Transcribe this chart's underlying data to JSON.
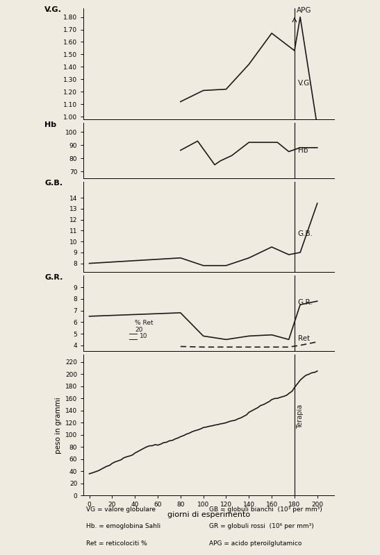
{
  "bg_color": "#f0ebe0",
  "therapy_x": 180,
  "x_lim": [
    -5,
    215
  ],
  "x_ticks": [
    0,
    20,
    40,
    60,
    80,
    100,
    120,
    140,
    160,
    180,
    200
  ],
  "xlabel": "giorni di esperimento",
  "legend_lines": [
    "VG = valore globulare",
    "Hb. = emoglobina Sahli",
    "Ret = reticolociti %"
  ],
  "legend_lines_right": [
    "GB = globuli bianchi  (10³ per mm³)",
    "GR = globuli rossi  (10⁶ per mm³)",
    "APG = acido pteroilglutamico"
  ],
  "vg": {
    "ylabel": "V.G.",
    "ylim": [
      0.98,
      1.87
    ],
    "yticks": [
      1.0,
      1.1,
      1.2,
      1.3,
      1.4,
      1.5,
      1.6,
      1.7,
      1.8
    ],
    "x": [
      80,
      100,
      120,
      140,
      160,
      180,
      185,
      200
    ],
    "y": [
      1.12,
      1.21,
      1.22,
      1.42,
      1.67,
      1.53,
      1.8,
      0.92
    ]
  },
  "hb": {
    "ylabel": "Hb",
    "ylim": [
      65,
      107
    ],
    "yticks": [
      70,
      80,
      90,
      100
    ],
    "x": [
      80,
      95,
      110,
      115,
      125,
      140,
      155,
      165,
      175,
      185,
      200
    ],
    "y": [
      86,
      93,
      75,
      78,
      82,
      92,
      92,
      92,
      85,
      88,
      88
    ]
  },
  "gb": {
    "ylabel": "G.B.",
    "ylim": [
      7.2,
      15.5
    ],
    "yticks": [
      8,
      9,
      10,
      11,
      12,
      13,
      14
    ],
    "x": [
      0,
      80,
      100,
      120,
      140,
      160,
      175,
      185,
      200
    ],
    "y": [
      8.0,
      8.5,
      7.8,
      7.8,
      8.5,
      9.5,
      8.8,
      9.0,
      13.5
    ]
  },
  "gr": {
    "ylabel": "G.R.",
    "ylim": [
      3.5,
      10.0
    ],
    "yticks": [
      4,
      5,
      6,
      7,
      8,
      9
    ],
    "x": [
      0,
      80,
      100,
      120,
      140,
      160,
      175,
      185,
      195,
      200
    ],
    "y": [
      6.5,
      6.8,
      4.8,
      4.5,
      4.8,
      4.9,
      4.5,
      7.5,
      7.7,
      7.8
    ],
    "ret_x": [
      80,
      100,
      120,
      140,
      160,
      175,
      185,
      195,
      200
    ],
    "ret_y": [
      3.9,
      3.85,
      3.85,
      3.85,
      3.85,
      3.85,
      4.0,
      4.2,
      4.3
    ]
  },
  "peso": {
    "ylabel": "peso in grammi",
    "ylim": [
      0,
      232
    ],
    "yticks": [
      0,
      20,
      40,
      60,
      80,
      100,
      120,
      140,
      160,
      180,
      200,
      220
    ],
    "x": [
      0,
      2,
      5,
      8,
      10,
      12,
      15,
      18,
      20,
      22,
      25,
      28,
      30,
      33,
      35,
      38,
      40,
      42,
      45,
      48,
      50,
      53,
      55,
      58,
      60,
      63,
      65,
      68,
      70,
      73,
      75,
      78,
      80,
      83,
      85,
      88,
      90,
      93,
      95,
      98,
      100,
      103,
      105,
      108,
      110,
      113,
      115,
      118,
      120,
      123,
      125,
      128,
      130,
      133,
      135,
      138,
      140,
      143,
      145,
      148,
      150,
      153,
      155,
      158,
      160,
      163,
      165,
      168,
      170,
      173,
      175,
      178,
      180,
      183,
      185,
      188,
      190,
      193,
      195,
      198,
      200
    ],
    "y": [
      36,
      37,
      39,
      41,
      43,
      45,
      48,
      50,
      53,
      55,
      57,
      59,
      62,
      64,
      65,
      67,
      70,
      72,
      75,
      78,
      80,
      82,
      82,
      84,
      83,
      85,
      87,
      88,
      90,
      91,
      93,
      95,
      97,
      99,
      101,
      103,
      105,
      107,
      108,
      110,
      112,
      113,
      114,
      115,
      116,
      117,
      118,
      119,
      120,
      122,
      123,
      124,
      126,
      128,
      130,
      133,
      137,
      140,
      142,
      145,
      148,
      150,
      152,
      155,
      158,
      160,
      160,
      162,
      163,
      165,
      168,
      172,
      178,
      185,
      190,
      195,
      198,
      200,
      202,
      203,
      205
    ]
  }
}
